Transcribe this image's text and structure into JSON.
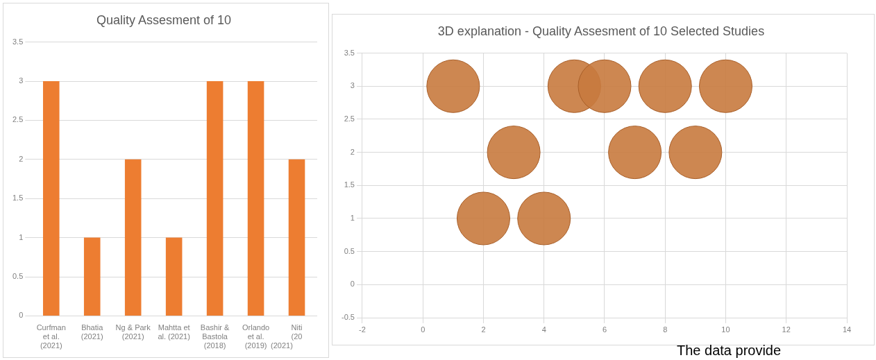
{
  "chart_data": [
    {
      "type": "bar",
      "title": "Quality Assesment of 10",
      "categories": [
        "Curfman\net al.\n(2021)",
        "Bhatia\n(2021)",
        "Ng & Park\n(2021)",
        "Mahtta et\nal. (2021)",
        "Bashir &\nBastola\n(2018)",
        "Orlando\net al.\n(2019)",
        "Niti\n(20"
      ],
      "values": [
        3,
        1,
        2,
        1,
        3,
        3,
        2
      ],
      "color": "#ed7d31",
      "ylim": [
        0,
        3.5
      ],
      "yticks": [
        0,
        0.5,
        1,
        1.5,
        2,
        2.5,
        3,
        3.5
      ],
      "grid": "y",
      "annotations": [
        "(2021)"
      ]
    },
    {
      "type": "bubble",
      "title": "3D explanation - Quality Assesment of 10 Selected Studies",
      "x": [
        1,
        2,
        3,
        4,
        5,
        6,
        7,
        8,
        9,
        10
      ],
      "values": [
        3,
        1,
        2,
        1,
        3,
        3,
        2,
        3,
        2,
        3
      ],
      "sizes": [
        1,
        1,
        1,
        1,
        1,
        1,
        1,
        1,
        1,
        1
      ],
      "color": "#c87a3e",
      "xlim": [
        -2,
        14
      ],
      "xticks": [
        -2,
        0,
        2,
        4,
        6,
        8,
        10,
        12,
        14
      ],
      "ylim": [
        -0.5,
        3.5
      ],
      "yticks": [
        -0.5,
        0,
        0.5,
        1,
        1.5,
        2,
        2.5,
        3,
        3.5
      ],
      "grid": true,
      "annotations": [
        "The data provide"
      ]
    }
  ]
}
